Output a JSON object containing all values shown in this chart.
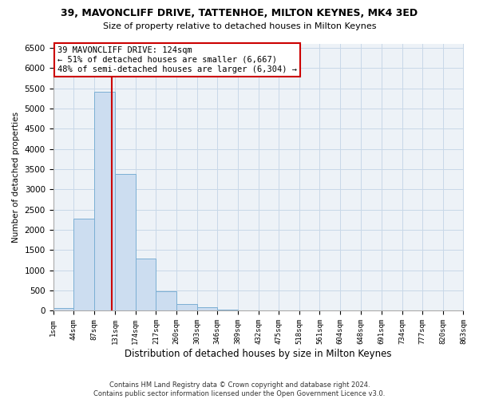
{
  "title": "39, MAVONCLIFF DRIVE, TATTENHOE, MILTON KEYNES, MK4 3ED",
  "subtitle": "Size of property relative to detached houses in Milton Keynes",
  "xlabel": "Distribution of detached houses by size in Milton Keynes",
  "ylabel": "Number of detached properties",
  "bar_color": "#ccddf0",
  "bar_edge_color": "#7bafd4",
  "bin_edges": [
    1,
    44,
    87,
    131,
    174,
    217,
    260,
    303,
    346,
    389,
    432,
    475,
    518,
    561,
    604,
    648,
    691,
    734,
    777,
    820,
    863
  ],
  "bar_heights": [
    75,
    2275,
    5425,
    3375,
    1300,
    475,
    175,
    90,
    30,
    10,
    5,
    0,
    0,
    0,
    0,
    0,
    0,
    0,
    0,
    0
  ],
  "vline_x": 124,
  "vline_color": "#cc0000",
  "ylim": [
    0,
    6600
  ],
  "yticks": [
    0,
    500,
    1000,
    1500,
    2000,
    2500,
    3000,
    3500,
    4000,
    4500,
    5000,
    5500,
    6000,
    6500
  ],
  "xtick_labels": [
    "1sqm",
    "44sqm",
    "87sqm",
    "131sqm",
    "174sqm",
    "217sqm",
    "260sqm",
    "303sqm",
    "346sqm",
    "389sqm",
    "432sqm",
    "475sqm",
    "518sqm",
    "561sqm",
    "604sqm",
    "648sqm",
    "691sqm",
    "734sqm",
    "777sqm",
    "820sqm",
    "863sqm"
  ],
  "annotation_title": "39 MAVONCLIFF DRIVE: 124sqm",
  "annotation_line1": "← 51% of detached houses are smaller (6,667)",
  "annotation_line2": "48% of semi-detached houses are larger (6,304) →",
  "annotation_box_facecolor": "#ffffff",
  "annotation_box_edgecolor": "#cc0000",
  "footer1": "Contains HM Land Registry data © Crown copyright and database right 2024.",
  "footer2": "Contains public sector information licensed under the Open Government Licence v3.0.",
  "grid_color": "#c8d8e8",
  "background_color": "#edf2f7"
}
